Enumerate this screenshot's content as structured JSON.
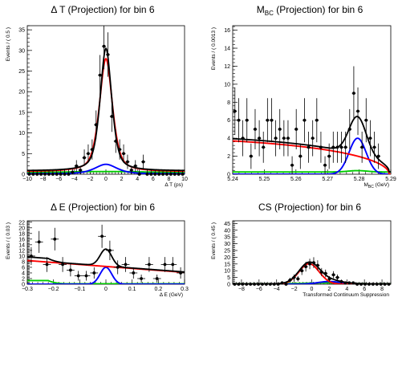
{
  "chart_data": [
    {
      "type": "line",
      "title": "Δ T (Projection) for bin 6",
      "xlabel": "Δ T (ps)",
      "ylabel": "Events / ( 0.5 )",
      "xlim": [
        -10,
        10
      ],
      "ylim": [
        0,
        36
      ],
      "xticks": [
        "−10",
        "−8",
        "−6",
        "−4",
        "−2",
        "0",
        "2",
        "4",
        "6",
        "8",
        "10"
      ],
      "xtick_values": [
        -10,
        -8,
        -6,
        -4,
        -2,
        0,
        2,
        4,
        6,
        8,
        10
      ],
      "yticks": [
        "0",
        "5",
        "10",
        "15",
        "20",
        "25",
        "30",
        "35"
      ],
      "ytick_values": [
        0,
        5,
        10,
        15,
        20,
        25,
        30,
        35
      ],
      "data_points": {
        "x": [
          -9.75,
          -9.25,
          -8.75,
          -8.25,
          -7.75,
          -7.25,
          -6.75,
          -6.25,
          -5.75,
          -5.25,
          -4.75,
          -4.25,
          -3.75,
          -3.25,
          -2.75,
          -2.25,
          -1.75,
          -1.25,
          -0.75,
          -0.25,
          0.25,
          0.75,
          1.25,
          1.75,
          2.25,
          2.75,
          3.25,
          3.75,
          4.25,
          4.75,
          5.25,
          5.75,
          6.25,
          6.75,
          7.25,
          7.75,
          8.25,
          8.75,
          9.25,
          9.75
        ],
        "y": [
          0,
          0,
          0,
          0,
          0,
          0,
          0,
          0,
          0,
          0,
          0,
          0.5,
          2,
          1,
          4,
          5,
          6,
          12,
          24,
          31,
          29,
          14,
          8,
          6,
          5,
          3,
          1,
          2,
          0,
          3,
          0,
          0,
          0,
          0,
          0,
          0,
          0,
          0,
          0,
          0
        ]
      },
      "series": [
        {
          "name": "",
          "color": "#000000",
          "kind": "total",
          "peak_x": 0.0,
          "peak_y": 30.5,
          "sigma": 0.85,
          "base": 0.8
        },
        {
          "name": "",
          "color": "#ff0000",
          "kind": "continuum",
          "peak_x": 0.0,
          "peak_y": 28.0,
          "sigma": 0.95,
          "base": 0.6
        },
        {
          "name": "",
          "color": "#0000ff",
          "kind": "signal",
          "peak_x": 0.0,
          "peak_y": 2.4,
          "sigma": 1.6,
          "base": 0.1
        },
        {
          "name": "",
          "color": "#00cc00",
          "kind": "background",
          "peak_x": 0.0,
          "peak_y": 0.0,
          "sigma": 5.0,
          "base": 0.4
        }
      ]
    },
    {
      "type": "line",
      "title": "M",
      "title_sub": "BC",
      "title_rest": " (Projection) for bin 6",
      "xlabel": "M",
      "xlabel_sub": "BC",
      "xlabel_rest": " (GeV)",
      "ylabel": "Events / ( 0.0013 )",
      "xlim": [
        5.24,
        5.29
      ],
      "ylim": [
        0,
        16.5
      ],
      "xticks": [
        "5.24",
        "5.25",
        "5.26",
        "5.27",
        "5.28",
        "5.29"
      ],
      "xtick_values": [
        5.24,
        5.25,
        5.26,
        5.27,
        5.28,
        5.29
      ],
      "yticks": [
        "0",
        "2",
        "4",
        "6",
        "8",
        "10",
        "12",
        "14",
        "16"
      ],
      "ytick_values": [
        0,
        2,
        4,
        6,
        8,
        10,
        12,
        14,
        16
      ],
      "data_points": {
        "x": [
          5.2407,
          5.2419,
          5.2432,
          5.2445,
          5.2458,
          5.2471,
          5.2484,
          5.2497,
          5.251,
          5.2523,
          5.2536,
          5.2549,
          5.2562,
          5.2575,
          5.2588,
          5.2601,
          5.2614,
          5.2627,
          5.264,
          5.2653,
          5.2666,
          5.2679,
          5.2692,
          5.2705,
          5.2718,
          5.2731,
          5.2744,
          5.2757,
          5.277,
          5.2783,
          5.2796,
          5.2809,
          5.2822,
          5.2835,
          5.2848,
          5.2861
        ],
        "y": [
          7,
          6,
          4,
          6,
          2,
          5,
          4,
          3,
          6,
          6,
          4,
          5,
          4,
          4,
          1,
          5,
          2,
          6,
          3,
          4,
          6,
          3,
          1,
          2,
          3,
          3,
          3,
          3,
          5,
          9,
          7,
          3,
          6,
          4,
          3,
          2
        ]
      },
      "series": [
        {
          "name": "",
          "color": "#000000",
          "kind": "total"
        },
        {
          "name": "",
          "color": "#ff0000",
          "kind": "continuum"
        },
        {
          "name": "",
          "color": "#0000ff",
          "kind": "signal",
          "peak_x": 5.2795,
          "peak_y": 4.0,
          "sigma": 0.0027
        },
        {
          "name": "",
          "color": "#00cc00",
          "kind": "background"
        }
      ]
    },
    {
      "type": "line",
      "title": "Δ E (Projection) for bin 6",
      "xlabel": "Δ E (GeV)",
      "ylabel": "Events / ( 0.03 )",
      "xlim": [
        -0.3,
        0.3
      ],
      "ylim": [
        0,
        22.5
      ],
      "xticks": [
        "−0.3",
        "−0.2",
        "−0.1",
        "0",
        "0.1",
        "0.2",
        "0.3"
      ],
      "xtick_values": [
        -0.3,
        -0.2,
        -0.1,
        0,
        0.1,
        0.2,
        0.3
      ],
      "yticks": [
        "0",
        "2",
        "4",
        "6",
        "8",
        "10",
        "12",
        "14",
        "16",
        "18",
        "20",
        "22"
      ],
      "ytick_values": [
        0,
        2,
        4,
        6,
        8,
        10,
        12,
        14,
        16,
        18,
        20,
        22
      ],
      "data_points": {
        "x": [
          -0.285,
          -0.255,
          -0.225,
          -0.195,
          -0.165,
          -0.135,
          -0.105,
          -0.075,
          -0.045,
          -0.015,
          0.015,
          0.045,
          0.075,
          0.105,
          0.135,
          0.165,
          0.195,
          0.225,
          0.255,
          0.285
        ],
        "y": [
          10,
          15,
          7,
          16,
          7,
          5,
          3,
          3,
          4,
          17,
          12,
          6,
          7,
          4,
          2,
          7,
          2,
          7,
          7,
          4
        ]
      },
      "series": [
        {
          "name": "",
          "color": "#000000",
          "kind": "total"
        },
        {
          "name": "",
          "color": "#ff0000",
          "kind": "continuum",
          "y_at_xmin": 8.4,
          "y_at_xmax": 4.2
        },
        {
          "name": "",
          "color": "#0000ff",
          "kind": "signal",
          "peak_x": 0.0,
          "peak_y": 6.0,
          "sigma": 0.022
        },
        {
          "name": "",
          "color": "#00cc00",
          "kind": "background"
        }
      ]
    },
    {
      "type": "line",
      "title": "CS (Projection) for bin 6",
      "xlabel": "Transformed Continuum Suppression",
      "ylabel": "Events / ( 0.45 )",
      "xlim": [
        -9,
        9
      ],
      "ylim": [
        0,
        47
      ],
      "xticks": [
        "−8",
        "−6",
        "−4",
        "−2",
        "0",
        "2",
        "4",
        "6",
        "8"
      ],
      "xtick_values": [
        -8,
        -6,
        -4,
        -2,
        0,
        2,
        4,
        6,
        8
      ],
      "yticks": [
        "0",
        "5",
        "10",
        "15",
        "20",
        "25",
        "30",
        "35",
        "40",
        "45"
      ],
      "ytick_values": [
        0,
        5,
        10,
        15,
        20,
        25,
        30,
        35,
        40,
        45
      ],
      "data_points": {
        "x": [
          -8.775,
          -8.325,
          -7.875,
          -7.425,
          -6.975,
          -6.525,
          -6.075,
          -5.625,
          -5.175,
          -4.725,
          -4.275,
          -3.825,
          -3.375,
          -2.925,
          -2.475,
          -2.025,
          -1.575,
          -1.125,
          -0.675,
          -0.225,
          0.225,
          0.675,
          1.125,
          1.575,
          2.025,
          2.475,
          2.925,
          3.375,
          3.825,
          4.275,
          4.725,
          5.175,
          5.625,
          6.075,
          6.525,
          6.975,
          7.425,
          7.875,
          8.325,
          8.775
        ],
        "y": [
          0,
          0,
          0,
          0,
          0,
          0,
          0,
          0,
          0,
          0,
          0,
          0,
          1,
          0,
          3,
          5,
          4,
          10,
          13,
          15,
          16,
          14,
          9,
          8,
          4,
          7,
          5,
          2,
          1,
          1,
          1,
          0,
          0,
          0,
          0,
          0,
          0,
          0,
          0,
          0
        ]
      },
      "series": [
        {
          "name": "",
          "color": "#000000",
          "kind": "total"
        },
        {
          "name": "",
          "color": "#ff0000",
          "kind": "continuum",
          "peak_x": -0.3,
          "peak_y": 15.2,
          "sigma": 1.15
        },
        {
          "name": "",
          "color": "#0000ff",
          "kind": "signal",
          "peak_x": 2.0,
          "peak_y": 2.0,
          "sigma": 1.3
        },
        {
          "name": "",
          "color": "#00cc00",
          "kind": "background"
        }
      ]
    }
  ]
}
